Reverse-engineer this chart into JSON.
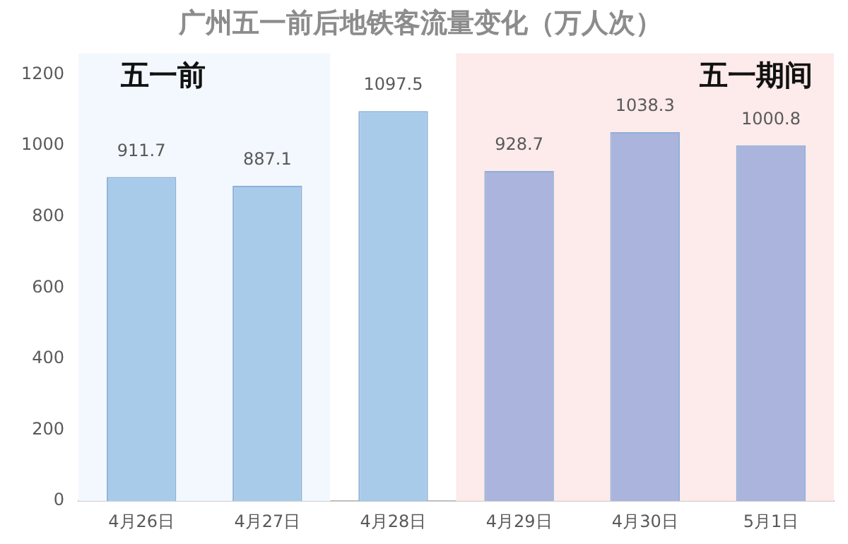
{
  "chart_data": {
    "type": "bar",
    "title": "广州五一前后地铁客流量变化（万人次）",
    "categories": [
      "4月26日",
      "4月27日",
      "4月28日",
      "4月29日",
      "4月30日",
      "5月1日"
    ],
    "values": [
      911.7,
      887.1,
      1097.5,
      928.7,
      1038.3,
      1000.8
    ],
    "colors": [
      "#a9cbea",
      "#a9cbea",
      "#a9cbea",
      "#aab4dc",
      "#aab4dc",
      "#aab4dc"
    ],
    "ylim": [
      0,
      1200
    ],
    "yticks": [
      0,
      200,
      400,
      600,
      800,
      1000,
      1200
    ],
    "grid": false,
    "data_labels": true,
    "bands": [
      {
        "axis": "x",
        "from": "4月26日",
        "to": "4月27日",
        "label": "五一前",
        "color": "#f2f8fd"
      },
      {
        "axis": "x",
        "from": "4月29日",
        "to": "5月1日",
        "label": "五一期间",
        "color": "#fdeaea"
      }
    ]
  }
}
